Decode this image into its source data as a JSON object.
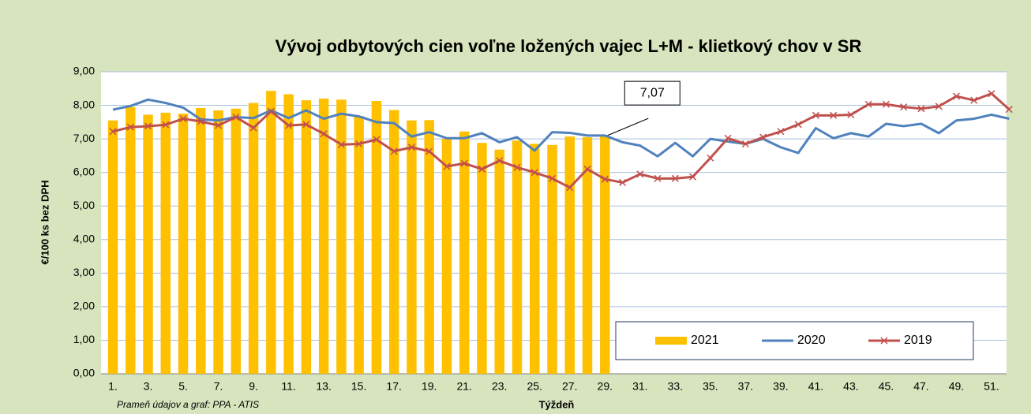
{
  "chart_data": {
    "type": "bar",
    "title": "Vývoj odbytových cien voľne ložených vajec L+M - klietkový chov v SR",
    "x_label": "Týždeň",
    "y_label": "€/100 ks bez DPH",
    "source": "Prameň údajov a graf: PPA - ATIS",
    "categories": [
      "1.",
      null,
      "3.",
      null,
      "5.",
      null,
      "7.",
      null,
      "9.",
      null,
      "11.",
      null,
      "13.",
      null,
      "15.",
      null,
      "17.",
      null,
      "19.",
      null,
      "21.",
      null,
      "23.",
      null,
      "25.",
      null,
      "27.",
      null,
      "29.",
      null,
      "31.",
      null,
      "33.",
      null,
      "35.",
      null,
      "37.",
      null,
      "39.",
      null,
      "41.",
      null,
      "43.",
      null,
      "45.",
      null,
      "47.",
      null,
      "49.",
      null,
      "51.",
      null
    ],
    "ylim": [
      0,
      9
    ],
    "yticks": [
      {
        "value": 0,
        "label": "0,00"
      },
      {
        "value": 1,
        "label": "1,00"
      },
      {
        "value": 2,
        "label": "2,00"
      },
      {
        "value": 3,
        "label": "3,00"
      },
      {
        "value": 4,
        "label": "4,00"
      },
      {
        "value": 5,
        "label": "5,00"
      },
      {
        "value": 6,
        "label": "6,00"
      },
      {
        "value": 7,
        "label": "7,00"
      },
      {
        "value": 8,
        "label": "8,00"
      },
      {
        "value": 9,
        "label": "9,00"
      }
    ],
    "grid": true,
    "legend": "bottom-right",
    "series": [
      {
        "name": "2021",
        "type": "bar",
        "color": "#ffc000",
        "values": [
          7.55,
          7.95,
          7.72,
          7.78,
          7.75,
          7.92,
          7.85,
          7.9,
          8.07,
          8.43,
          8.33,
          8.15,
          8.2,
          8.17,
          7.68,
          8.13,
          7.86,
          7.55,
          7.56,
          7.0,
          7.22,
          6.88,
          6.68,
          6.95,
          6.85,
          6.82,
          7.07,
          7.05,
          7.07,
          null,
          null,
          null,
          null,
          null,
          null,
          null,
          null,
          null,
          null,
          null,
          null,
          null,
          null,
          null,
          null,
          null,
          null,
          null,
          null,
          null,
          null,
          null
        ],
        "value_labels": [
          null,
          null,
          null,
          null,
          null,
          null,
          null,
          null,
          null,
          null,
          null,
          null,
          null,
          null,
          null,
          null,
          null,
          null,
          null,
          null,
          null,
          null,
          null,
          null,
          null,
          null,
          null,
          null,
          "7,07",
          null,
          null,
          null,
          null,
          null,
          null,
          null,
          null,
          null,
          null,
          null,
          null,
          null,
          null,
          null,
          null,
          null,
          null,
          null,
          null,
          null,
          null,
          null
        ]
      },
      {
        "name": "2020",
        "type": "line",
        "color": "#4f81bd",
        "values": [
          7.87,
          7.98,
          8.17,
          8.07,
          7.93,
          7.58,
          7.55,
          7.65,
          7.62,
          7.85,
          7.62,
          7.85,
          7.6,
          7.75,
          7.67,
          7.5,
          7.47,
          7.07,
          7.2,
          7.02,
          7.02,
          7.17,
          6.9,
          7.05,
          6.65,
          7.2,
          7.18,
          7.1,
          7.1,
          6.9,
          6.8,
          6.48,
          6.88,
          6.48,
          7.0,
          6.92,
          6.85,
          7.0,
          6.75,
          6.58,
          7.32,
          7.02,
          7.17,
          7.07,
          7.45,
          7.38,
          7.45,
          7.17,
          7.55,
          7.6,
          7.72,
          7.6
        ]
      },
      {
        "name": "2019",
        "type": "line",
        "marker": "x",
        "color": "#c0504d",
        "values": [
          7.22,
          7.35,
          7.38,
          7.42,
          7.6,
          7.52,
          7.4,
          7.65,
          7.33,
          7.82,
          7.4,
          7.43,
          7.15,
          6.83,
          6.85,
          6.98,
          6.63,
          6.75,
          6.63,
          6.18,
          6.27,
          6.1,
          6.35,
          6.15,
          6.0,
          5.82,
          5.55,
          6.1,
          5.8,
          5.7,
          5.95,
          5.82,
          5.82,
          5.87,
          6.43,
          7.02,
          6.85,
          7.05,
          7.22,
          7.43,
          7.7,
          7.7,
          7.72,
          8.03,
          8.03,
          7.95,
          7.9,
          7.97,
          8.27,
          8.15,
          8.35,
          7.88
        ]
      }
    ]
  }
}
